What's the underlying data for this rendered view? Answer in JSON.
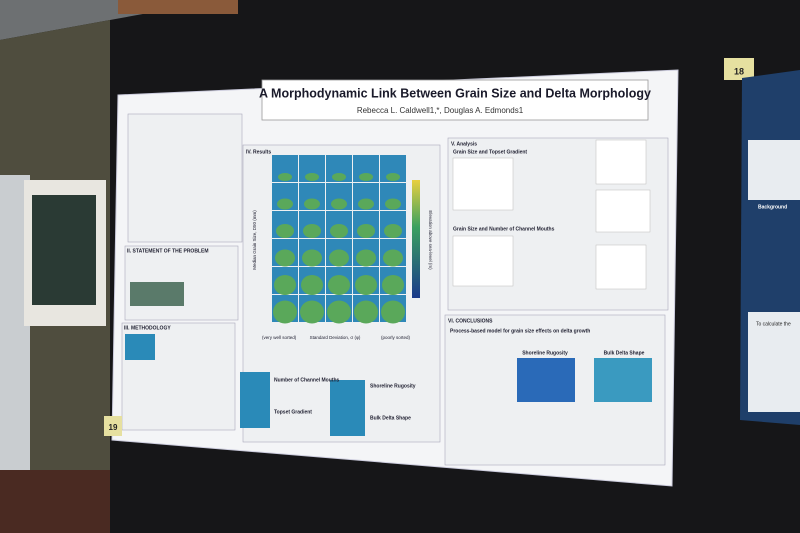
{
  "poster": {
    "title": "A Morphodynamic Link Between Grain Size and Delta Morphology",
    "authors": "Rebecca L. Caldwell1,*, Douglas A. Edmonds1",
    "sections": {
      "statement": "II. STATEMENT OF THE PROBLEM",
      "methodology": "III. METHODOLOGY",
      "results": "IV. Results",
      "analysis": "V. Analysis",
      "conclusions": "VI. CONCLUSIONS"
    },
    "analysis": {
      "topset": "Grain Size and Topset Gradient",
      "mouths": "Grain Size and Number of Channel Mouths"
    },
    "results": {
      "y_label": "Median Grain Size, D50 (mm)",
      "x_label": "Standard Deviation, σ (φ)",
      "colorbar_label": "Elevation above sea-level (m)",
      "left_note": "(very well sorted)",
      "right_note": "(poorly sorted)",
      "metrics": [
        "Number of Channel Mouths",
        "Topset Gradient",
        "Shoreline Rugosity",
        "Bulk Delta Shape"
      ]
    },
    "conclusions": {
      "heading": "Process-based model for grain size effects on delta growth",
      "left_plot": "Shoreline Rugosity",
      "right_plot": "Bulk Delta Shape"
    }
  },
  "labels": {
    "poster_left": "19",
    "poster_right": "18"
  },
  "neighbor_poster": {
    "background": "Background",
    "text": "To calculate the"
  }
}
